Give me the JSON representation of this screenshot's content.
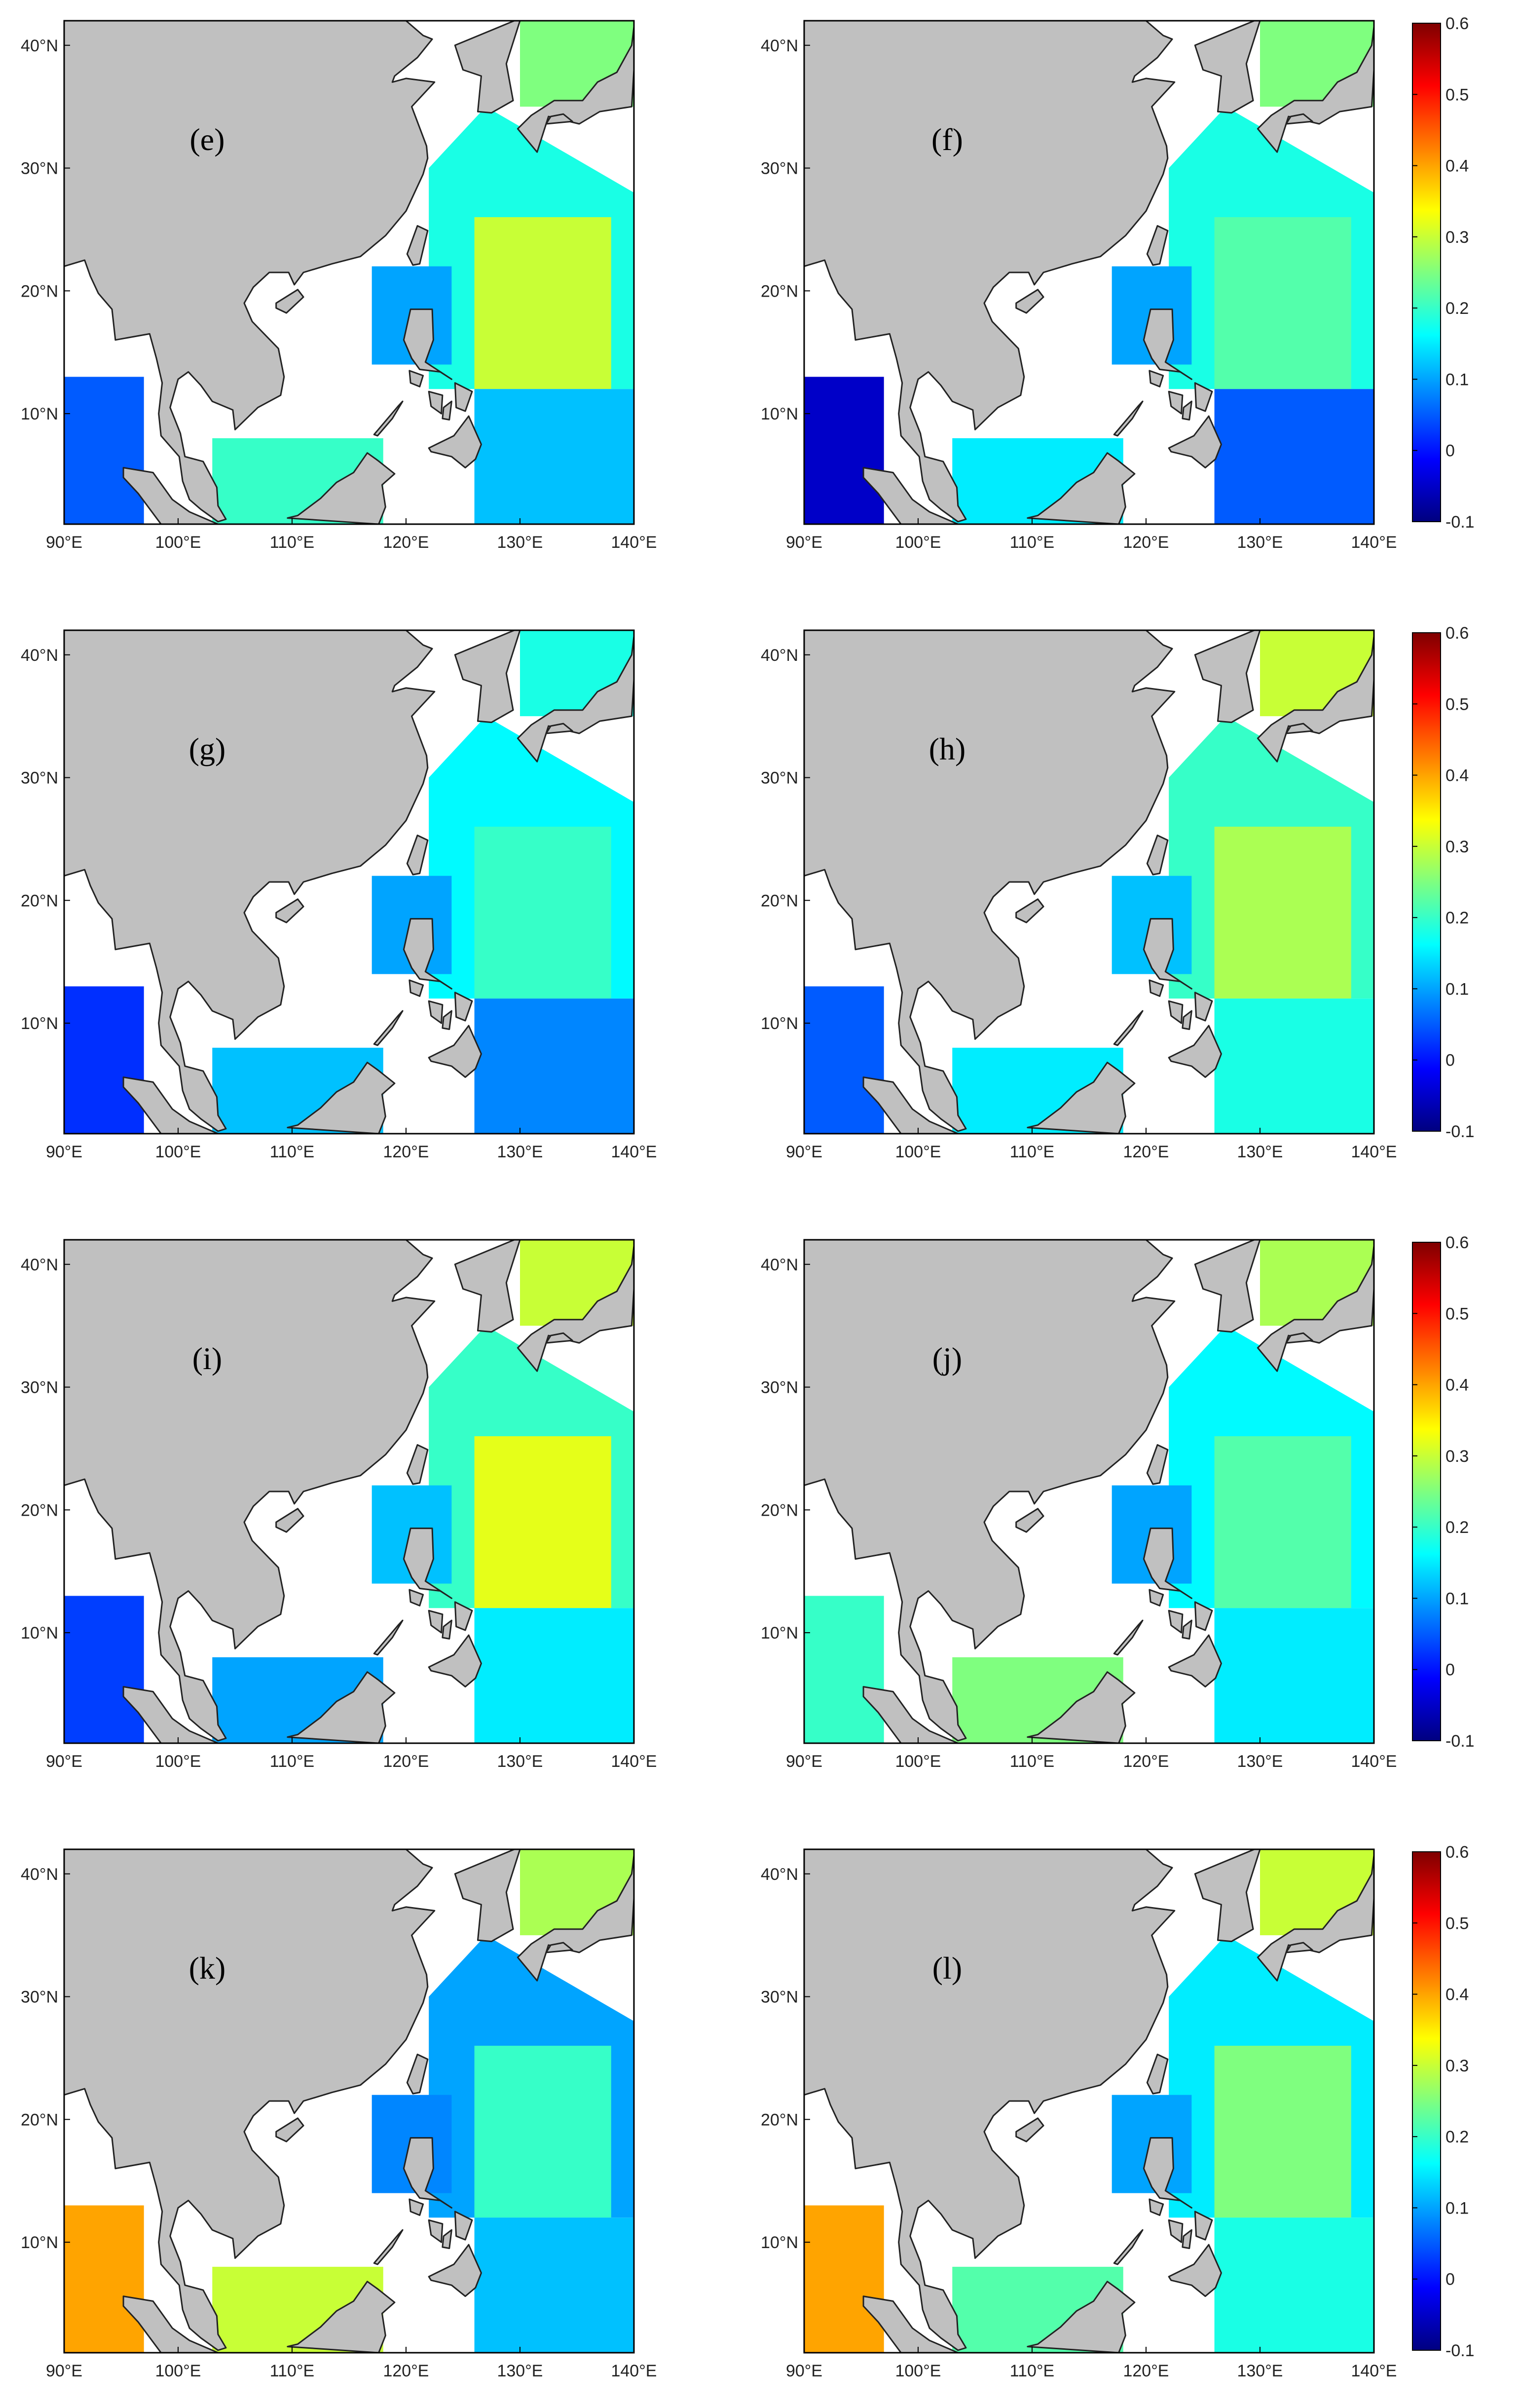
{
  "chart_data": {
    "type": "heatmap",
    "xticks": [
      "90°E",
      "100°E",
      "110°E",
      "120°E",
      "130°E",
      "140°E"
    ],
    "yticks": [
      "10°N",
      "20°N",
      "30°N",
      "40°N"
    ],
    "xlim": [
      90,
      140
    ],
    "ylim": [
      1,
      42
    ],
    "colorbar": {
      "ticks": [
        "0.6",
        "0.5",
        "0.4",
        "0.3",
        "0.2",
        "0.1",
        "0",
        "-0.1"
      ],
      "range": [
        -0.1,
        0.6
      ],
      "colors": [
        "#00007f",
        "#0000ff",
        "#007fff",
        "#00ffff",
        "#7fff7f",
        "#ffff00",
        "#ff7f00",
        "#ff0000",
        "#7f0000"
      ]
    },
    "panels": [
      {
        "label": "(e)",
        "ocean_fields": [
          0.18,
          0.1,
          0.3,
          0.12,
          0.05,
          0.2,
          0.25
        ]
      },
      {
        "label": "(f)",
        "ocean_fields": [
          0.18,
          0.1,
          0.22,
          0.05,
          -0.05,
          0.15,
          0.25
        ]
      },
      {
        "label": "(g)",
        "ocean_fields": [
          0.16,
          0.1,
          0.2,
          0.08,
          0.02,
          0.12,
          0.18
        ]
      },
      {
        "label": "(h)",
        "ocean_fields": [
          0.2,
          0.12,
          0.28,
          0.18,
          0.05,
          0.15,
          0.3
        ]
      },
      {
        "label": "(i)",
        "ocean_fields": [
          0.2,
          0.12,
          0.32,
          0.15,
          0.03,
          0.1,
          0.3
        ]
      },
      {
        "label": "(j)",
        "ocean_fields": [
          0.16,
          0.1,
          0.22,
          0.15,
          0.2,
          0.25,
          0.28
        ]
      },
      {
        "label": "(k)",
        "ocean_fields": [
          0.1,
          0.08,
          0.2,
          0.12,
          0.4,
          0.3,
          0.28
        ]
      },
      {
        "label": "(l)",
        "ocean_fields": [
          0.15,
          0.1,
          0.25,
          0.18,
          0.4,
          0.22,
          0.3
        ]
      }
    ]
  },
  "colors": {
    "land": "#c0c0c0",
    "coast": "#222222",
    "frame": "#000000",
    "masked_sea": "#ffffff"
  }
}
